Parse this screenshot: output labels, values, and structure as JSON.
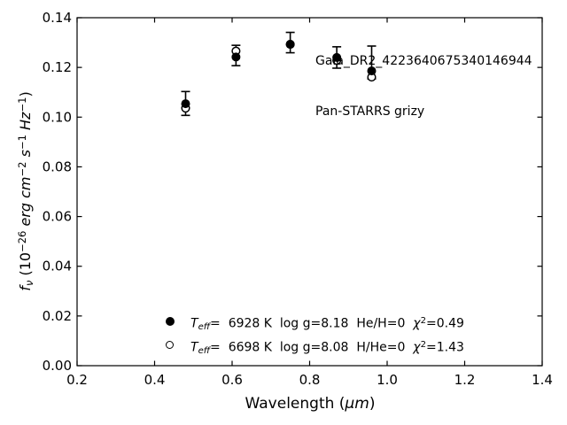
{
  "colors": {
    "foreground": "#000000",
    "background": "#ffffff"
  },
  "chart_data": {
    "type": "scatter",
    "title": "",
    "xlim": [
      0.2,
      1.4
    ],
    "ylim": [
      0.0,
      0.14
    ],
    "grid": false,
    "tick_direction": "in",
    "ticks_all_sides": true,
    "xticks": [
      "0.2",
      "0.4",
      "0.6",
      "0.8",
      "1.0",
      "1.2",
      "1.4"
    ],
    "yticks": [
      "0.00",
      "0.02",
      "0.04",
      "0.06",
      "0.08",
      "0.10",
      "0.12",
      "0.14"
    ],
    "xlabel_pieces": [
      {
        "t": "Wavelength (",
        "s": "n"
      },
      {
        "t": "μm",
        "s": "i"
      },
      {
        "t": ")",
        "s": "n"
      }
    ],
    "ylabel_pieces": [
      {
        "t": "f",
        "s": "i"
      },
      {
        "t": "ν",
        "s": "isub"
      },
      {
        "t": " (10",
        "s": "n"
      },
      {
        "t": "−26",
        "s": "sup"
      },
      {
        "t": " ",
        "s": "n"
      },
      {
        "t": "erg cm",
        "s": "i"
      },
      {
        "t": "−2",
        "s": "sup"
      },
      {
        "t": " ",
        "s": "n"
      },
      {
        "t": "s",
        "s": "i"
      },
      {
        "t": "−1",
        "s": "sup"
      },
      {
        "t": " ",
        "s": "n"
      },
      {
        "t": "Hz",
        "s": "i"
      },
      {
        "t": "−1",
        "s": "sup"
      },
      {
        "t": ")",
        "s": "n"
      }
    ],
    "annotations": [
      "Gaia_DR2_4223640675340146944",
      "Pan-STARRS grizy"
    ],
    "x_values": [
      0.48,
      0.61,
      0.75,
      0.87,
      0.96
    ],
    "series": [
      {
        "name": "observed-photometry",
        "marker": "errorbar",
        "y": [
          0.1055,
          0.1248,
          0.13,
          0.124,
          0.122
        ],
        "yerr": [
          0.0048,
          0.0041,
          0.0041,
          0.0043,
          0.0066
        ]
      },
      {
        "name": "model-H-He-0",
        "marker": "open-circle",
        "y": [
          0.1036,
          0.1266,
          0.1293,
          0.1228,
          0.1161
        ]
      },
      {
        "name": "model-He-H-0",
        "marker": "filled-circle",
        "y": [
          0.1054,
          0.1242,
          0.1293,
          0.124,
          0.1186
        ]
      }
    ],
    "legend": {
      "rows": [
        {
          "marker": "filled-circle",
          "pieces": [
            {
              "t": "T",
              "s": "i"
            },
            {
              "t": "eff",
              "s": "isub"
            },
            {
              "t": "=  ",
              "s": "n"
            },
            {
              "t": "6928 K  log g=8.18  He/H=0  ",
              "s": "n"
            },
            {
              "t": "χ",
              "s": "i"
            },
            {
              "t": "2",
              "s": "sup"
            },
            {
              "t": "=0.49",
              "s": "n"
            }
          ]
        },
        {
          "marker": "open-circle",
          "pieces": [
            {
              "t": "T",
              "s": "i"
            },
            {
              "t": "eff",
              "s": "isub"
            },
            {
              "t": "=  ",
              "s": "n"
            },
            {
              "t": "6698 K  log g=8.08  H/He=0  ",
              "s": "n"
            },
            {
              "t": "χ",
              "s": "i"
            },
            {
              "t": "2",
              "s": "sup"
            },
            {
              "t": "=1.43",
              "s": "n"
            }
          ]
        }
      ]
    }
  }
}
